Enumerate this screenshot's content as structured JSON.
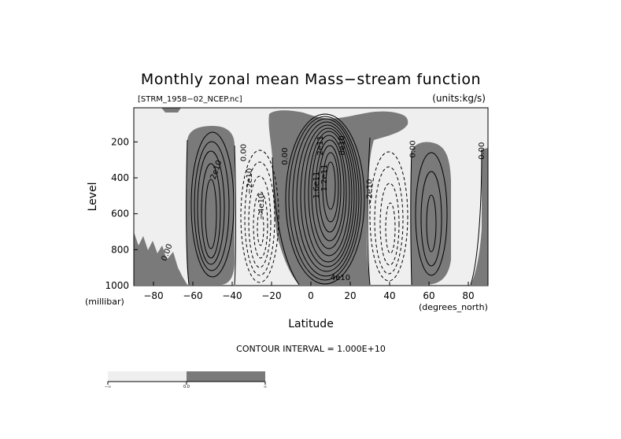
{
  "chart_data": {
    "type": "contour",
    "title": "Monthly zonal mean Mass−stream function",
    "file_label": "[STRM_1958−02_NCEP.nc]",
    "units_label": "(units:kg/s)",
    "xlabel": "Latitude",
    "x_units": "(degrees_north)",
    "ylabel": "Level",
    "y_units": "(millibar)",
    "xlim": [
      -90,
      90
    ],
    "ylim": [
      1000,
      10
    ],
    "y_reversed": true,
    "x_ticks": [
      -80,
      -60,
      -40,
      -20,
      0,
      20,
      40,
      60,
      80
    ],
    "x_tick_labels": [
      "−80",
      "−60",
      "−40",
      "−20",
      "0",
      "20",
      "40",
      "60",
      "80"
    ],
    "y_ticks": [
      200,
      400,
      600,
      800,
      1000
    ],
    "y_tick_labels": [
      "200",
      "400",
      "600",
      "800",
      "1000"
    ],
    "contour_interval_text": "CONTOUR INTERVAL = 1.000E+10",
    "fill_colors": {
      "negative": "#efefef",
      "positive": "#7a7a7a"
    },
    "negative_line_style": "dashed",
    "cells": [
      {
        "sign": "positive",
        "lat_range": [
          -62,
          -34
        ],
        "level_range": [
          170,
          990
        ],
        "peak_lat": -47,
        "peak_level": 500,
        "contours": 6
      },
      {
        "sign": "negative",
        "lat_range": [
          -35,
          -8
        ],
        "level_range": [
          200,
          980
        ],
        "peak_lat": -20,
        "peak_level": 500,
        "contours": 5
      },
      {
        "sign": "positive",
        "lat_range": [
          -14,
          32
        ],
        "level_range": [
          80,
          990
        ],
        "peak_lat": 10,
        "peak_level": 450,
        "contours": 15
      },
      {
        "sign": "negative",
        "lat_range": [
          32,
          52
        ],
        "level_range": [
          200,
          980
        ],
        "peak_lat": 42,
        "peak_level": 600,
        "contours": 5
      },
      {
        "sign": "positive",
        "lat_range": [
          55,
          75
        ],
        "level_range": [
          250,
          950
        ],
        "peak_lat": 65,
        "peak_level": 620,
        "contours": 3
      }
    ],
    "contour_labels": [
      {
        "text": "2e10",
        "lat": -47,
        "level": 360,
        "angle": -70
      },
      {
        "text": "0.00",
        "lat": -33,
        "level": 260,
        "angle": -90
      },
      {
        "text": "−2e10",
        "lat": -30,
        "level": 420,
        "angle": -90
      },
      {
        "text": "−4e10",
        "lat": -24,
        "level": 560,
        "angle": -90
      },
      {
        "text": "0.00",
        "lat": -12,
        "level": 280,
        "angle": -90
      },
      {
        "text": "0.00",
        "lat": -72,
        "level": 820,
        "angle": -70
      },
      {
        "text": "2e11",
        "lat": 6,
        "level": 220,
        "angle": -90
      },
      {
        "text": "1.6e11",
        "lat": 4,
        "level": 440,
        "angle": -90
      },
      {
        "text": "1.2e11",
        "lat": 8,
        "level": 400,
        "angle": -90
      },
      {
        "text": "8e10",
        "lat": 17,
        "level": 220,
        "angle": -90
      },
      {
        "text": "4e10",
        "lat": 15,
        "level": 970,
        "angle": 0
      },
      {
        "text": "−2e10",
        "lat": 31,
        "level": 480,
        "angle": -90
      },
      {
        "text": "0.00",
        "lat": 53,
        "level": 240,
        "angle": -90
      },
      {
        "text": "0.00",
        "lat": 88,
        "level": 250,
        "angle": -90
      }
    ]
  },
  "colorbar": {
    "segments": [
      {
        "color": "#efefef"
      },
      {
        "color": "#7a7a7a"
      }
    ],
    "tick_labels": [
      "−∞",
      "0.0",
      "∞"
    ]
  }
}
